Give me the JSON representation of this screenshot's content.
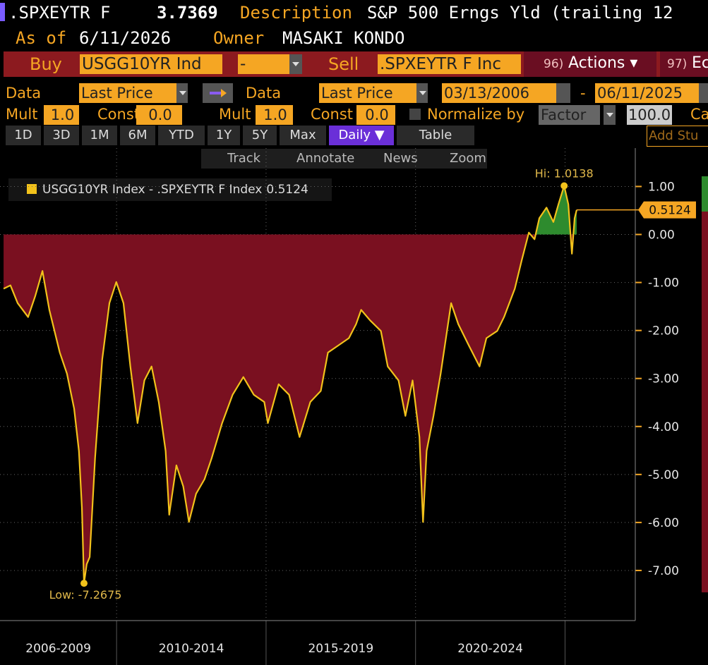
{
  "header": {
    "ticker": ".SPXEYTR F",
    "price": "3.7369",
    "description_label": "Description",
    "description": "S&P 500 Erngs Yld (trailing 12",
    "as_of_label": "As of",
    "as_of": "6/11/2026",
    "owner_label": "Owner",
    "owner": "MASAKI KONDO"
  },
  "toolbar": {
    "buy_label": "Buy",
    "buy_security": "USGG10YR Ind",
    "operator": "-",
    "sell_label": "Sell",
    "sell_security": ".SPXEYTR F Inc",
    "actions_number": "96)",
    "actions": "Actions ▾",
    "next_number": "97)",
    "next": "Ec"
  },
  "settings": {
    "data_label_1": "Data",
    "field_1": "Last Price",
    "data_label_2": "Data",
    "field_2": "Last Price",
    "start_date": "03/13/2006",
    "date_separator": "-",
    "end_date": "06/11/2025",
    "mult_label_1": "Mult",
    "mult_1": "1.0",
    "const_label_1": "Const",
    "const_1": "0.0",
    "mult_label_2": "Mult",
    "mult_2": "1.0",
    "const_label_2": "Const",
    "const_2": "0.0",
    "normalize_label": "Normalize by",
    "normalize_method": "Factor",
    "normalize_value": "100.0",
    "truncated_label": "Ca"
  },
  "periods": [
    "1D",
    "3D",
    "1M",
    "6M",
    "YTD",
    "1Y",
    "5Y",
    "Max"
  ],
  "frequency": "Daily ▼",
  "table_button": "Table",
  "add_study": "Add Stu",
  "chart_tools": [
    "Track",
    "Annotate",
    "News",
    "Zoom"
  ],
  "chart_data": {
    "type": "line",
    "x": [
      2006.22,
      2006.45,
      2006.69,
      2007.04,
      2007.28,
      2007.52,
      2007.75,
      2008.1,
      2008.34,
      2008.58,
      2008.74,
      2008.84,
      2008.91,
      2009.0,
      2009.1,
      2009.28,
      2009.52,
      2009.76,
      2009.99,
      2010.23,
      2010.46,
      2010.7,
      2010.93,
      2011.17,
      2011.41,
      2011.64,
      2011.76,
      2012.0,
      2012.23,
      2012.42,
      2012.66,
      2012.94,
      2013.18,
      2013.53,
      2013.88,
      2014.24,
      2014.59,
      2014.94,
      2015.06,
      2015.42,
      2015.77,
      2016.12,
      2016.48,
      2016.83,
      2017.07,
      2017.42,
      2017.77,
      2018.01,
      2018.18,
      2018.48,
      2018.84,
      2019.07,
      2019.43,
      2019.66,
      2019.9,
      2020.13,
      2020.25,
      2020.37,
      2020.6,
      2020.84,
      2021.19,
      2021.43,
      2021.78,
      2022.14,
      2022.37,
      2022.73,
      2022.96,
      2023.32,
      2023.55,
      2023.79,
      2023.98,
      2024.14,
      2024.38,
      2024.61,
      2024.78,
      2024.97,
      2025.11,
      2025.23,
      2025.32,
      2025.39
    ],
    "series": [
      {
        "name": "USGG10YR Index - .SPXEYTR F Index",
        "color": "#f2c21b",
        "last_value": 0.5124,
        "values": [
          -1.13,
          -1.06,
          -1.43,
          -1.72,
          -1.28,
          -0.76,
          -1.57,
          -2.46,
          -2.9,
          -3.63,
          -4.51,
          -5.69,
          -7.2675,
          -6.87,
          -6.72,
          -4.66,
          -2.6,
          -1.43,
          -0.99,
          -1.43,
          -2.75,
          -3.93,
          -3.04,
          -2.75,
          -3.49,
          -4.51,
          -5.84,
          -4.81,
          -5.25,
          -5.99,
          -5.4,
          -5.1,
          -4.66,
          -3.93,
          -3.34,
          -2.97,
          -3.34,
          -3.49,
          -3.93,
          -3.12,
          -3.34,
          -4.22,
          -3.49,
          -3.26,
          -2.46,
          -2.31,
          -2.16,
          -1.87,
          -1.57,
          -1.79,
          -2.01,
          -2.75,
          -3.04,
          -3.78,
          -3.04,
          -4.22,
          -5.99,
          -4.51,
          -3.78,
          -2.9,
          -1.43,
          -1.87,
          -2.31,
          -2.75,
          -2.16,
          -2.01,
          -1.72,
          -1.13,
          -0.54,
          0.04,
          -0.1,
          0.34,
          0.56,
          0.26,
          0.63,
          1.0138,
          0.63,
          -0.4,
          0.34,
          0.5124
        ]
      }
    ],
    "fill_above_color": "#2e8b2e",
    "fill_below_color": "#7a1020",
    "last_value_color": "#f5a623",
    "hi_label": "Hi: 1.0138",
    "low_label": "Low: -7.2675",
    "xlim": [
      2006.1,
      2027.35
    ],
    "xticks": [
      2010,
      2015,
      2020,
      2025
    ],
    "x_period_labels": [
      "2006-2009",
      "2010-2014",
      "2015-2019",
      "2020-2024"
    ],
    "ylim": [
      -8.0,
      1.8
    ],
    "yticks": [
      {
        "value": 1,
        "label": "1.00"
      },
      {
        "value": 0,
        "label": "0.00"
      },
      {
        "value": -1,
        "label": "-1.00"
      },
      {
        "value": -2,
        "label": "-2.00"
      },
      {
        "value": -3,
        "label": "-3.00"
      },
      {
        "value": -4,
        "label": "-4.00"
      },
      {
        "value": -5,
        "label": "-5.00"
      },
      {
        "value": -6,
        "label": "-6.00"
      },
      {
        "value": -7,
        "label": "-7.00"
      }
    ],
    "grid": true
  }
}
